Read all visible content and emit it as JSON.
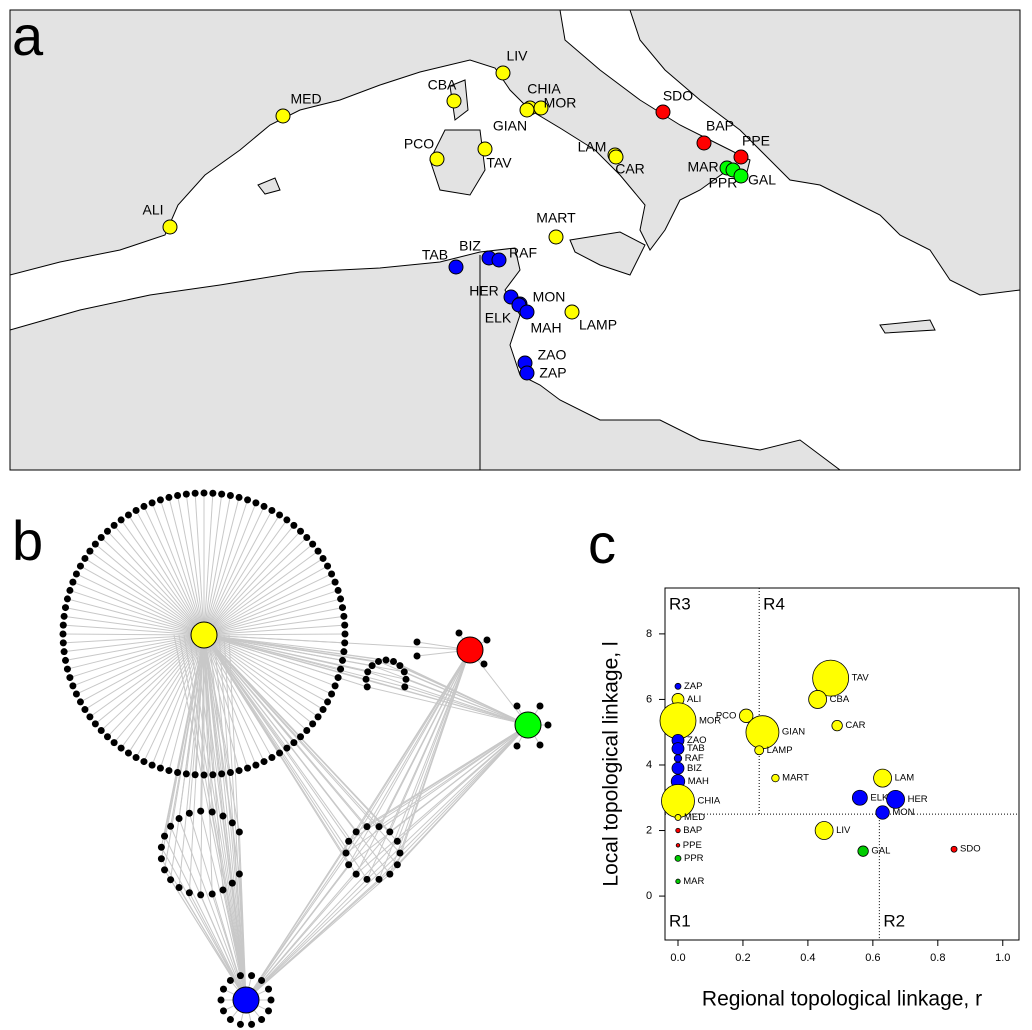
{
  "panel_labels": [
    "a",
    "b",
    "c"
  ],
  "map": {
    "sites": [
      {
        "name": "MED",
        "color": "#ffff00"
      },
      {
        "name": "ALI",
        "color": "#ffff00"
      },
      {
        "name": "CBA",
        "color": "#ffff00"
      },
      {
        "name": "LIV",
        "color": "#ffff00"
      },
      {
        "name": "CHIA",
        "color": "#ffff00"
      },
      {
        "name": "MOR",
        "color": "#ffff00"
      },
      {
        "name": "GIAN",
        "color": "#ffff00"
      },
      {
        "name": "PCO",
        "color": "#ffff00"
      },
      {
        "name": "TAV",
        "color": "#ffff00"
      },
      {
        "name": "LAM",
        "color": "#ffff00"
      },
      {
        "name": "CAR",
        "color": "#ffff00"
      },
      {
        "name": "SDO",
        "color": "#ff0000"
      },
      {
        "name": "BAP",
        "color": "#ff0000"
      },
      {
        "name": "PPE",
        "color": "#ff0000"
      },
      {
        "name": "MAR",
        "color": "#00ff00"
      },
      {
        "name": "PPR",
        "color": "#00ff00"
      },
      {
        "name": "GAL",
        "color": "#00ff00"
      },
      {
        "name": "MART",
        "color": "#ffff00"
      },
      {
        "name": "TAB",
        "color": "#0000ff"
      },
      {
        "name": "BIZ",
        "color": "#0000ff"
      },
      {
        "name": "RAF",
        "color": "#0000ff"
      },
      {
        "name": "HER",
        "color": "#0000ff"
      },
      {
        "name": "MON",
        "color": "#0000ff"
      },
      {
        "name": "ELK",
        "color": "#0000ff"
      },
      {
        "name": "MAH",
        "color": "#0000ff"
      },
      {
        "name": "LAMP",
        "color": "#ffff00"
      },
      {
        "name": "ZAO",
        "color": "#0000ff"
      },
      {
        "name": "ZAP",
        "color": "#0000ff"
      }
    ]
  },
  "network": {
    "hub_colors": [
      "#ffff00",
      "#ff0000",
      "#00ff00",
      "#0000ff"
    ]
  },
  "chart_data": {
    "type": "scatter",
    "xlabel": "Regional topological linkage, r",
    "ylabel": "Local topological linkage, l",
    "point_labels": [
      "ZAP",
      "ALI",
      "MOR",
      "ZAO",
      "TAB",
      "RAF",
      "BIZ",
      "MAH",
      "CHIA",
      "PCO",
      "TAV",
      "CBA",
      "CAR",
      "GIAN",
      "LAMP",
      "MART",
      "LAM",
      "ELK",
      "HER",
      "MON",
      "LIV",
      "GAL",
      "SDO",
      "MED",
      "BAP",
      "PPE",
      "PPR",
      "MAR"
    ],
    "x": [
      0,
      0,
      0,
      0,
      0,
      0,
      0,
      0,
      0,
      0.21,
      0.47,
      0.43,
      0.49,
      0.26,
      0.25,
      0.3,
      0.63,
      0.56,
      0.67,
      0.63,
      0.45,
      0.57,
      0.85,
      0,
      0,
      0,
      0,
      0
    ],
    "values": [
      6.4,
      6.0,
      5.35,
      4.75,
      4.5,
      4.2,
      3.9,
      3.5,
      2.9,
      5.5,
      6.65,
      6.0,
      5.2,
      5.0,
      4.45,
      3.6,
      3.6,
      3.0,
      2.95,
      2.55,
      2.0,
      1.37,
      1.43,
      2.4,
      2.0,
      1.55,
      1.15,
      0.45
    ],
    "sizes": [
      2,
      4,
      12,
      4,
      4,
      2.5,
      4,
      4.5,
      11,
      4.5,
      12,
      6,
      3.5,
      11,
      3,
      2.5,
      6,
      5,
      6,
      4.5,
      6,
      3.5,
      2,
      2,
      1.5,
      1.2,
      2,
      1.5
    ],
    "colors": [
      "#0000ff",
      "#ffff00",
      "#ffff00",
      "#0000ff",
      "#0000ff",
      "#0000ff",
      "#0000ff",
      "#0000ff",
      "#ffff00",
      "#ffff00",
      "#ffff00",
      "#ffff00",
      "#ffff00",
      "#ffff00",
      "#ffff00",
      "#ffff00",
      "#ffff00",
      "#0000ff",
      "#0000ff",
      "#0000ff",
      "#ffff00",
      "#00cc00",
      "#ff0000",
      "#ffff00",
      "#ff0000",
      "#ff0000",
      "#00cc00",
      "#00cc00"
    ],
    "xlim": [
      -0.04,
      1.05
    ],
    "ylim": [
      -1.34,
      9.4
    ],
    "xticks": [
      {
        "value": 0,
        "label": "0.0"
      },
      {
        "value": 0.2,
        "label": "0.2"
      },
      {
        "value": 0.4,
        "label": "0.4"
      },
      {
        "value": 0.6,
        "label": "0.6"
      },
      {
        "value": 0.8,
        "label": "0.8"
      },
      {
        "value": 1,
        "label": "1.0"
      }
    ],
    "yticks": [
      0,
      2,
      4,
      6,
      8
    ],
    "dividers": {
      "x_upper": 0.25,
      "x_lower": 0.62,
      "y": 2.5
    },
    "region_labels": [
      "R1",
      "R2",
      "R3",
      "R4"
    ]
  }
}
